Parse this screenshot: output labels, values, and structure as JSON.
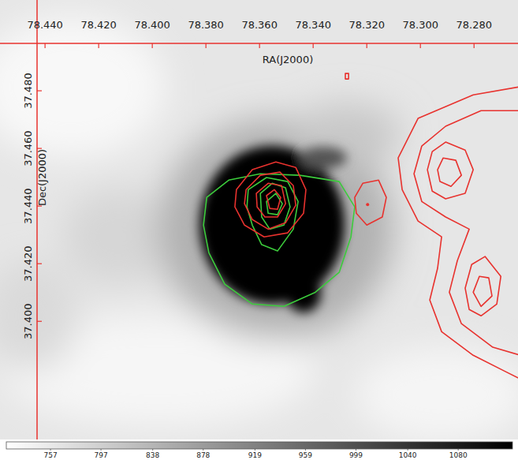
{
  "chart_data": {
    "type": "contour",
    "x_label": "RA(J2000)",
    "y_label": "Dec(J2000)",
    "xlim": [
      78.4568,
      78.2636
    ],
    "ylim": [
      37.359,
      37.5115
    ],
    "xticks": [
      {
        "value": 78.44,
        "label": "78.440"
      },
      {
        "value": 78.42,
        "label": "78.420"
      },
      {
        "value": 78.4,
        "label": "78.400"
      },
      {
        "value": 78.38,
        "label": "78.380"
      },
      {
        "value": 78.36,
        "label": "78.360"
      },
      {
        "value": 78.34,
        "label": "78.340"
      },
      {
        "value": 78.32,
        "label": "78.320"
      },
      {
        "value": 78.3,
        "label": "78.300"
      },
      {
        "value": 78.28,
        "label": "78.280"
      }
    ],
    "yticks": [
      {
        "value": 37.48,
        "label": "37.480"
      },
      {
        "value": 37.46,
        "label": "37.460"
      },
      {
        "value": 37.44,
        "label": "37.440"
      },
      {
        "value": 37.42,
        "label": "37.420"
      },
      {
        "value": 37.4,
        "label": "37.400"
      }
    ],
    "colorbar_lim": [
      722,
      1123
    ],
    "colorbar_ticks": [
      757,
      797,
      838,
      878,
      919,
      959,
      999,
      1040,
      1080
    ],
    "contours": [
      {
        "color": "#3ccc3c",
        "ra": [
          78.3797,
          78.3715,
          78.3597,
          78.345,
          78.3303,
          78.3245,
          78.3259,
          78.3303,
          78.3392,
          78.3509,
          78.3627,
          78.373,
          78.3789,
          78.3809
        ],
        "dec": [
          37.443,
          37.449,
          37.4512,
          37.4507,
          37.4485,
          37.4397,
          37.4293,
          37.417,
          37.4101,
          37.4052,
          37.406,
          37.4129,
          37.4238,
          37.4334
        ]
      },
      {
        "color": "#3ccc3c",
        "ra": [
          78.3642,
          78.3574,
          78.3495,
          78.3456,
          78.3474,
          78.3533,
          78.3592,
          78.3627,
          78.3647
        ],
        "dec": [
          37.4457,
          37.4499,
          37.4485,
          37.4416,
          37.432,
          37.4244,
          37.4266,
          37.4334,
          37.4397
        ]
      },
      {
        "color": "#3ccc3c",
        "ra": [
          78.3597,
          78.3553,
          78.3503,
          78.3486,
          78.3509,
          78.3562,
          78.3592
        ],
        "dec": [
          37.4444,
          37.4479,
          37.4463,
          37.4397,
          37.4334,
          37.432,
          37.4362
        ]
      },
      {
        "color": "#3ccc3c",
        "ra": [
          78.3574,
          78.3539,
          78.3515,
          78.3533,
          78.3568
        ],
        "dec": [
          37.4416,
          37.4444,
          37.4408,
          37.437,
          37.4375
        ]
      },
      {
        "color": "#e8322e",
        "ra": [
          78.3686,
          78.3627,
          78.3539,
          78.3465,
          78.3427,
          78.3436,
          78.3495,
          78.3583,
          78.3656,
          78.3692
        ],
        "dec": [
          37.4457,
          37.4526,
          37.4553,
          37.4534,
          37.4457,
          37.4375,
          37.4307,
          37.4293,
          37.4334,
          37.4397
        ]
      },
      {
        "color": "#e8322e",
        "ra": [
          78.365,
          78.3597,
          78.3524,
          78.3474,
          78.3465,
          78.3503,
          78.3568,
          78.3627,
          78.3656
        ],
        "dec": [
          37.4457,
          37.4507,
          37.4518,
          37.4471,
          37.4403,
          37.4342,
          37.432,
          37.4353,
          37.4408
        ]
      },
      {
        "color": "#e8322e",
        "ra": [
          78.3612,
          78.3568,
          78.3518,
          78.3503,
          78.3533,
          78.358,
          78.3609
        ],
        "dec": [
          37.4444,
          37.4479,
          37.4471,
          37.4408,
          37.4362,
          37.4362,
          37.4397
        ]
      },
      {
        "color": "#e8322e",
        "ra": [
          78.3574,
          78.3545,
          78.3521,
          78.3533,
          78.3562
        ],
        "dec": [
          37.4436,
          37.4457,
          37.443,
          37.4389,
          37.4392
        ]
      },
      {
        "color": "#e8322e",
        "ra": [
          78.3245,
          78.3215,
          78.3156,
          78.3127,
          78.3142,
          78.32,
          78.3239
        ],
        "dec": [
          37.443,
          37.4479,
          37.449,
          37.443,
          37.4362,
          37.4334,
          37.4375
        ]
      },
      {
        "color": "#e8322e",
        "ra": [
          78.2627,
          78.2803,
          78.3009,
          78.3083,
          78.3068,
          78.3009,
          78.2921,
          78.2936,
          78.2965,
          78.2921,
          78.2803,
          78.2686,
          78.2627
        ],
        "dec": [
          37.4814,
          37.4786,
          37.4704,
          37.4567,
          37.4457,
          37.4348,
          37.4293,
          37.4184,
          37.4074,
          37.3964,
          37.3882,
          37.3827,
          37.38
        ]
      },
      {
        "color": "#e8322e",
        "ra": [
          78.2627,
          78.2774,
          78.2906,
          78.2995,
          78.3024,
          78.2995,
          78.2906,
          78.2818,
          78.2862,
          78.2892,
          78.2847,
          78.273,
          78.2627
        ],
        "dec": [
          37.4731,
          37.4731,
          37.4677,
          37.4608,
          37.4512,
          37.4416,
          37.4362,
          37.432,
          37.4211,
          37.4101,
          37.3992,
          37.391,
          37.3882
        ]
      },
      {
        "color": "#e8322e",
        "ra": [
          78.2974,
          78.2956,
          78.2906,
          78.2833,
          78.2803,
          78.2833,
          78.2906,
          78.2956
        ],
        "dec": [
          37.4526,
          37.4589,
          37.4622,
          37.4594,
          37.4526,
          37.4444,
          37.4425,
          37.4452
        ]
      },
      {
        "color": "#e8322e",
        "ra": [
          78.2936,
          78.2915,
          78.2868,
          78.2847,
          78.2886,
          78.2927
        ],
        "dec": [
          37.4526,
          37.4567,
          37.4559,
          37.4507,
          37.4468,
          37.4485
        ]
      },
      {
        "color": "#e8322e",
        "ra": [
          78.2833,
          78.2809,
          78.2759,
          78.27,
          78.2715,
          78.2774,
          78.2818
        ],
        "dec": [
          37.4115,
          37.4197,
          37.4225,
          37.4156,
          37.406,
          37.4019,
          37.4041
        ]
      },
      {
        "color": "#e8322e",
        "ra": [
          78.2803,
          78.278,
          78.2745,
          78.2733,
          78.2774
        ],
        "dec": [
          37.4101,
          37.4156,
          37.4151,
          37.4088,
          37.4052
        ]
      },
      {
        "color": "#e8322e",
        "ra": [
          78.328,
          78.3268,
          78.3268,
          78.328
        ],
        "dec": [
          37.486,
          37.486,
          37.4841,
          37.4841
        ]
      }
    ],
    "points": {
      "color": "#e8322e",
      "ra": [
        78.3197
      ],
      "dec": [
        37.4405
      ]
    }
  }
}
